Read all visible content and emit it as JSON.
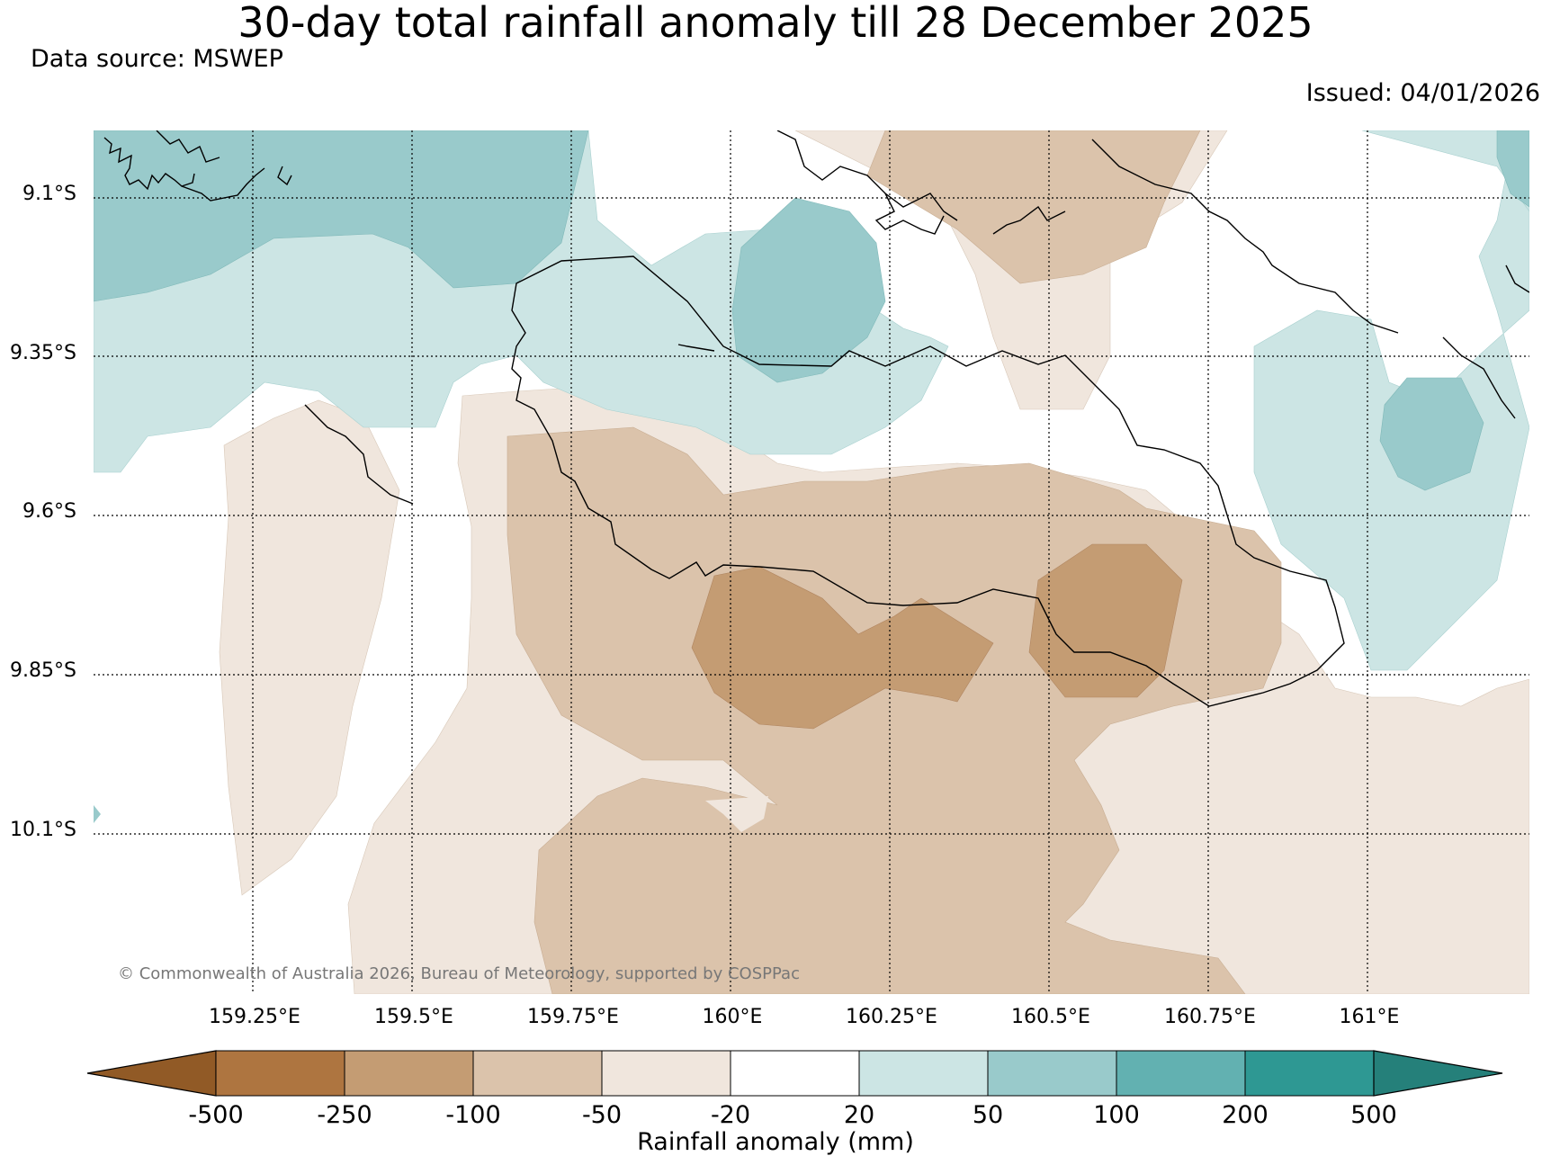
{
  "title": "30-day total rainfall anomaly till 28 December 2025",
  "data_source": "Data source: MSWEP",
  "issued": "Issued: 04/01/2026",
  "credit": "© Commonwealth of Australia 2026, Bureau of Meteorology, supported by COSPPac",
  "map": {
    "lat_labels": [
      "9.1°S",
      "9.35°S",
      "9.6°S",
      "9.85°S",
      "10.1°S"
    ],
    "lon_labels": [
      "159.25°E",
      "159.5°E",
      "159.75°E",
      "160°E",
      "160.25°E",
      "160.5°E",
      "160.75°E",
      "161°E"
    ]
  },
  "colorbar": {
    "title": "Rainfall anomaly (mm)",
    "ticks": [
      "-500",
      "-250",
      "-100",
      "-50",
      "-20",
      "20",
      "50",
      "100",
      "200",
      "500"
    ],
    "colors": [
      "#ae7540",
      "#c49c73",
      "#dbc3ab",
      "#f0e6dd",
      "#ffffff",
      "#cce5e4",
      "#99cacb",
      "#62b1b1",
      "#2e9893"
    ],
    "under_color": "#915a26",
    "over_color": "#25807a"
  }
}
